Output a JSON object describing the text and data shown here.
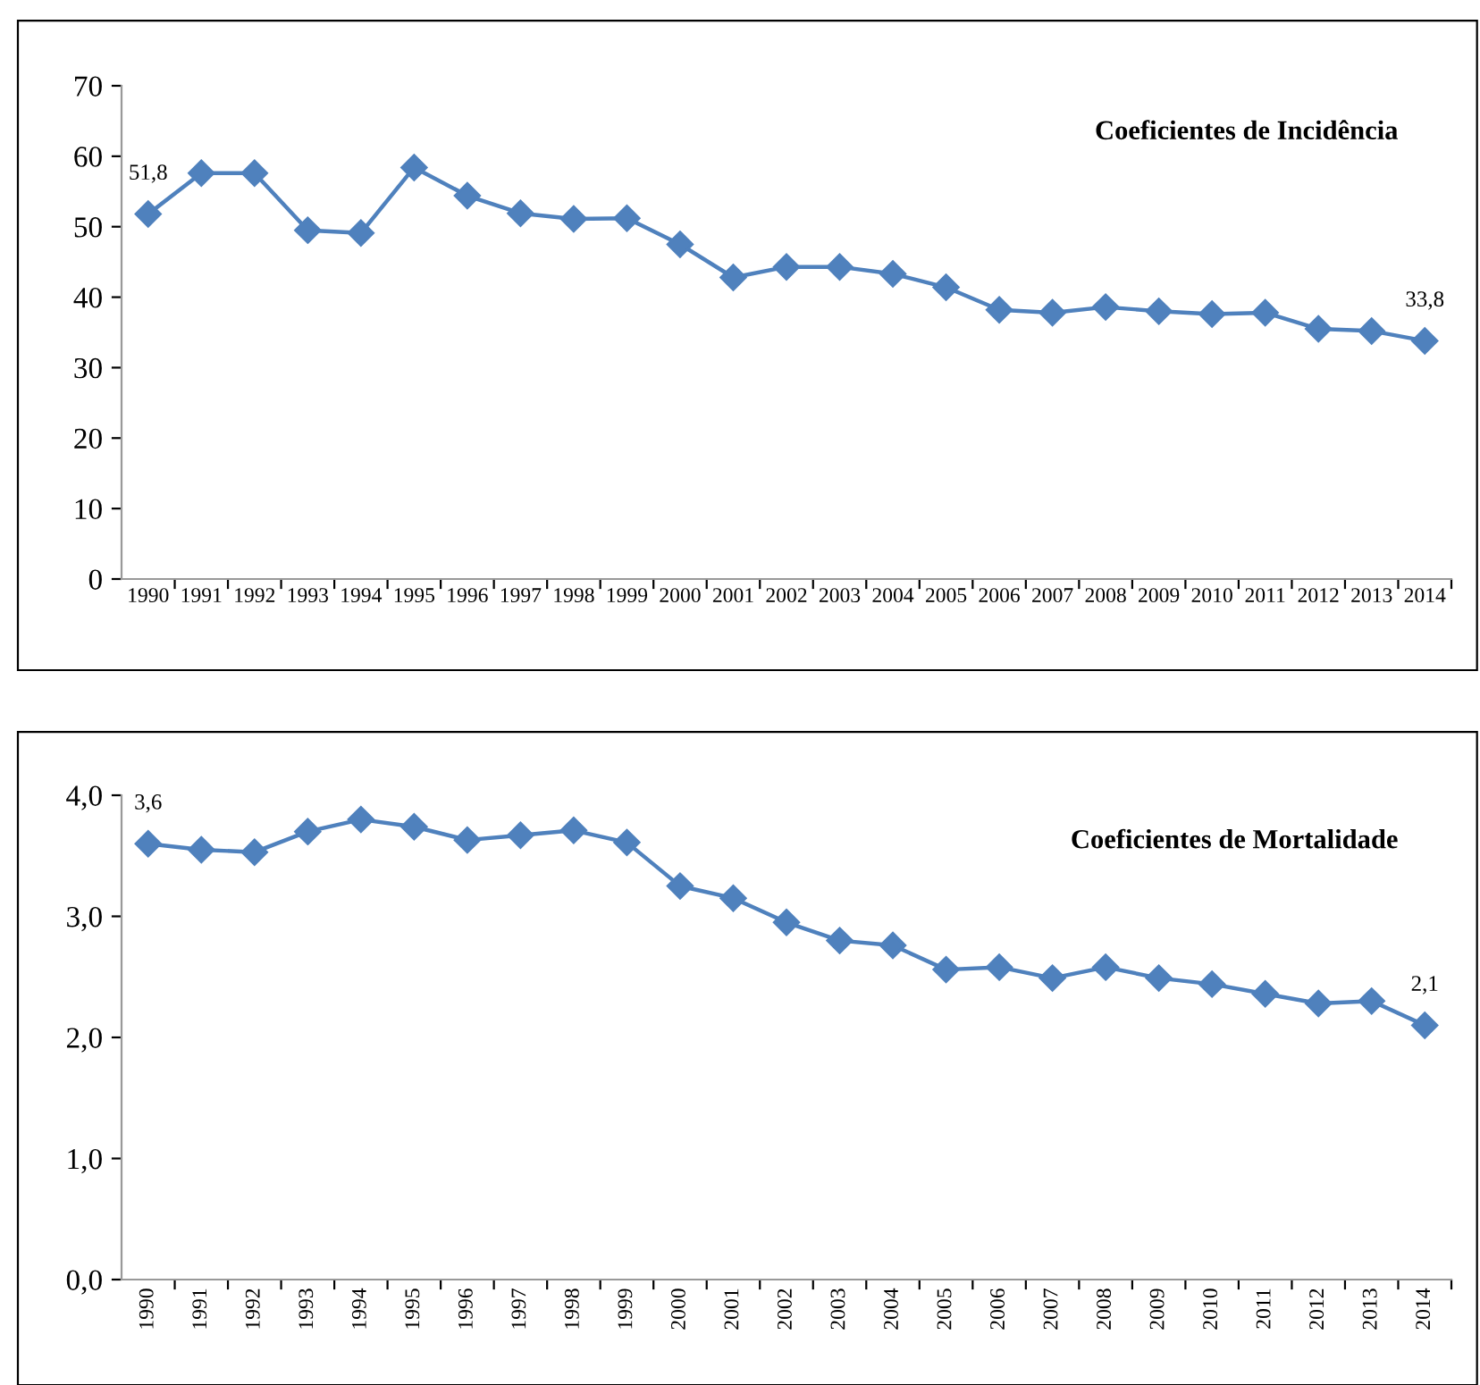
{
  "chart_data": [
    {
      "type": "line",
      "title": "Coeficientes de Incidência",
      "categories": [
        "1990",
        "1991",
        "1992",
        "1993",
        "1994",
        "1995",
        "1996",
        "1997",
        "1998",
        "1999",
        "2000",
        "2001",
        "2002",
        "2003",
        "2004",
        "2005",
        "2006",
        "2007",
        "2008",
        "2009",
        "2010",
        "2011",
        "2012",
        "2013",
        "2014"
      ],
      "series": [
        {
          "color": "#4f81bd",
          "values": [
            51.8,
            57.6,
            57.6,
            49.5,
            49.1,
            58.4,
            54.4,
            51.9,
            51.1,
            51.2,
            47.5,
            42.8,
            44.3,
            44.3,
            43.3,
            41.4,
            38.2,
            37.8,
            38.6,
            38.0,
            37.6,
            37.8,
            35.5,
            35.2,
            33.8
          ],
          "value_labels": [
            "51,8",
            null,
            null,
            null,
            null,
            null,
            null,
            null,
            null,
            null,
            null,
            null,
            null,
            null,
            null,
            null,
            null,
            null,
            null,
            null,
            null,
            null,
            null,
            null,
            "33,8"
          ]
        }
      ],
      "ylim": [
        0,
        70
      ],
      "yticks": [
        0,
        10,
        20,
        30,
        40,
        50,
        60,
        70
      ],
      "marker": "diamond",
      "line_style": "solid",
      "grid": false,
      "legend": false
    },
    {
      "type": "line",
      "title": "Coeficientes de Mortalidade",
      "categories": [
        "1990",
        "1991",
        "1992",
        "1993",
        "1994",
        "1995",
        "1996",
        "1997",
        "1998",
        "1999",
        "2000",
        "2001",
        "2002",
        "2003",
        "2004",
        "2005",
        "2006",
        "2007",
        "2008",
        "2009",
        "2010",
        "2011",
        "2012",
        "2013",
        "2014"
      ],
      "series": [
        {
          "color": "#4f81bd",
          "values": [
            3.6,
            3.55,
            3.53,
            3.7,
            3.8,
            3.74,
            3.63,
            3.67,
            3.71,
            3.61,
            3.25,
            3.15,
            2.95,
            2.8,
            2.76,
            2.56,
            2.58,
            2.49,
            2.58,
            2.49,
            2.44,
            2.36,
            2.28,
            2.3,
            2.1
          ],
          "value_labels": [
            "3,6",
            null,
            null,
            null,
            null,
            null,
            null,
            null,
            null,
            null,
            null,
            null,
            null,
            null,
            null,
            null,
            null,
            null,
            null,
            null,
            null,
            null,
            null,
            null,
            "2,1"
          ]
        }
      ],
      "ylim": [
        0,
        4
      ],
      "yticks": [
        {
          "value": 0,
          "label": "0,0"
        },
        {
          "value": 1,
          "label": "1,0"
        },
        {
          "value": 2,
          "label": "2,0"
        },
        {
          "value": 3,
          "label": "3,0"
        },
        {
          "value": 4,
          "label": "4,0"
        }
      ],
      "marker": "diamond",
      "line_style": "solid",
      "grid": false,
      "legend": false
    }
  ]
}
